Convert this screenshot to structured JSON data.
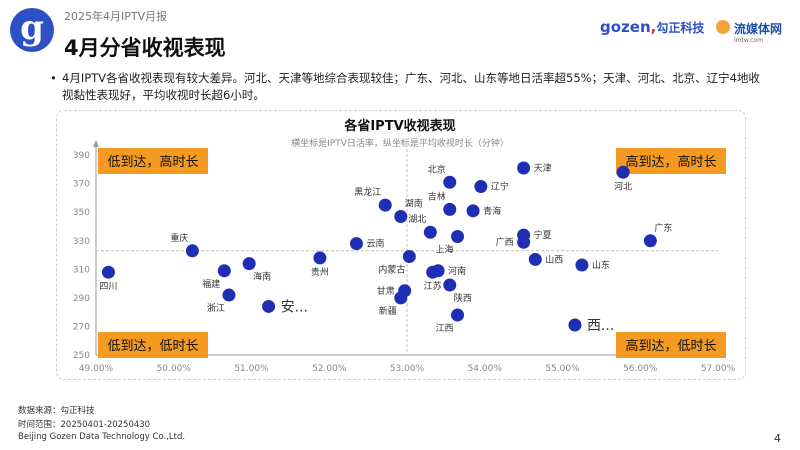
{
  "header": {
    "report_subtitle": "2025年4月IPTV月报",
    "title": "4月分省收视表现",
    "logo_glyph": "g",
    "gozen_brand": "gozen",
    "gozen_brand_cn": "勾正科技",
    "media_brand": "流媒体网",
    "media_url": "lmtw.com"
  },
  "bullet": {
    "text": "4月IPTV各省收视表现有较大差异。河北、天津等地综合表现较佳；广东、河北、山东等地日活率超55%；天津、河北、北京、辽宁4地收视黏性表现好，平均收视时长超6小时。"
  },
  "footer": {
    "source": "数据来源：勾正科技",
    "range": "时间范围：20250401-20250430",
    "company": "Beijing Gozen Data Technology Co.,Ltd."
  },
  "page_number": "4",
  "colors": {
    "accent": "#2d50c4",
    "dot": "#1e2fb4",
    "quadrant": "#f59a21",
    "refline": "#bfbfbf"
  },
  "chart_data": {
    "type": "scatter",
    "title": "各省IPTV收视表现",
    "subtitle": "横坐标是IPTV日活率，纵坐标是平均收视时长（分钟）",
    "xlim": [
      0.49,
      0.57
    ],
    "ylim": [
      250,
      395
    ],
    "x_ticks": [
      "49.00%",
      "50.00%",
      "51.00%",
      "52.00%",
      "53.00%",
      "54.00%",
      "55.00%",
      "56.00%",
      "57.00%"
    ],
    "y_ticks": [
      "390",
      "370",
      "350",
      "330",
      "310",
      "290",
      "270",
      "250"
    ],
    "reference_lines": {
      "x": 0.53,
      "y": 323
    },
    "quadrants": {
      "top_left": "低到达，高时长",
      "top_right": "高到达，高时长",
      "bottom_left": "低到达，低时长",
      "bottom_right": "高到达，低时长"
    },
    "points": [
      {
        "label": "河北",
        "x": 0.5578,
        "y": 378,
        "pos": "below"
      },
      {
        "label": "天津",
        "x": 0.545,
        "y": 381,
        "pos": "right"
      },
      {
        "label": "北京",
        "x": 0.5355,
        "y": 371,
        "pos": "above-left"
      },
      {
        "label": "辽宁",
        "x": 0.5395,
        "y": 368,
        "pos": "right"
      },
      {
        "label": "黑龙江",
        "x": 0.5272,
        "y": 355,
        "pos": "above-left"
      },
      {
        "label": "湖南",
        "x": 0.5292,
        "y": 347,
        "pos": "above-right"
      },
      {
        "label": "吉林",
        "x": 0.5355,
        "y": 352,
        "pos": "above-left"
      },
      {
        "label": "青海",
        "x": 0.5385,
        "y": 351,
        "pos": "right"
      },
      {
        "label": "湖北",
        "x": 0.533,
        "y": 336,
        "pos": "above-left"
      },
      {
        "label": "上海",
        "x": 0.5365,
        "y": 333,
        "pos": "below-left"
      },
      {
        "label": "宁夏",
        "x": 0.545,
        "y": 334,
        "pos": "right"
      },
      {
        "label": "广西",
        "x": 0.545,
        "y": 329,
        "pos": "left"
      },
      {
        "label": "广东",
        "x": 0.5613,
        "y": 330,
        "pos": "above-right"
      },
      {
        "label": "云南",
        "x": 0.5235,
        "y": 328,
        "pos": "right"
      },
      {
        "label": "重庆",
        "x": 0.5024,
        "y": 323,
        "pos": "above-left"
      },
      {
        "label": "贵州",
        "x": 0.5188,
        "y": 318,
        "pos": "below"
      },
      {
        "label": "内蒙古",
        "x": 0.5303,
        "y": 319,
        "pos": "below-left"
      },
      {
        "label": "山西",
        "x": 0.5465,
        "y": 317,
        "pos": "right"
      },
      {
        "label": "山东",
        "x": 0.5525,
        "y": 313,
        "pos": "right"
      },
      {
        "label": "海南",
        "x": 0.5097,
        "y": 314,
        "pos": "below-right"
      },
      {
        "label": "福建",
        "x": 0.5065,
        "y": 309,
        "pos": "below-left"
      },
      {
        "label": "四川",
        "x": 0.4916,
        "y": 308,
        "pos": "below"
      },
      {
        "label": "河南",
        "x": 0.534,
        "y": 309,
        "pos": "right"
      },
      {
        "label": "江苏",
        "x": 0.5333,
        "y": 308,
        "pos": "below"
      },
      {
        "label": "甘肃",
        "x": 0.5297,
        "y": 295,
        "pos": "left"
      },
      {
        "label": "陕西",
        "x": 0.5355,
        "y": 299,
        "pos": "below-right"
      },
      {
        "label": "新疆",
        "x": 0.5292,
        "y": 290,
        "pos": "below-left"
      },
      {
        "label": "浙江",
        "x": 0.5071,
        "y": 292,
        "pos": "below-left"
      },
      {
        "label": "安...",
        "x": 0.5122,
        "y": 284,
        "pos": "right-big"
      },
      {
        "label": "江西",
        "x": 0.5365,
        "y": 278,
        "pos": "below-left"
      },
      {
        "label": "西...",
        "x": 0.5516,
        "y": 271,
        "pos": "right-big"
      }
    ]
  }
}
